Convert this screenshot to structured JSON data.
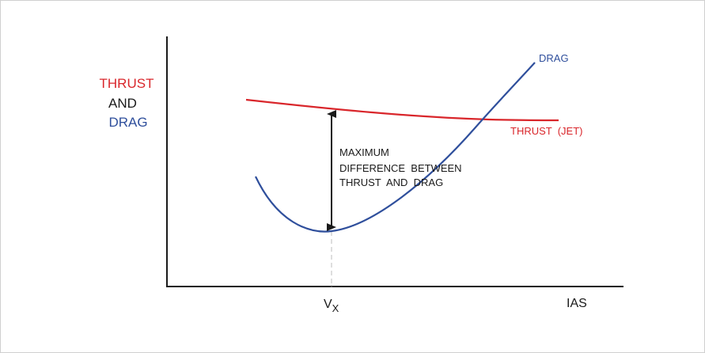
{
  "y_axis_label": {
    "line1": "THRUST",
    "line2": "AND",
    "line3": "DRAG"
  },
  "x_axis_label": "IAS",
  "vx_label": {
    "main": "V",
    "sub": "X"
  },
  "curves": {
    "drag_label": "DRAG",
    "thrust_label": "THRUST  (JET)"
  },
  "annotation": {
    "line1": "MAXIMUM",
    "line2": "DIFFERENCE  BETWEEN",
    "line3": "THRUST  AND  DRAG"
  },
  "colors": {
    "thrust": "#d9262b",
    "drag": "#2f4f9c",
    "axis": "#1a1a1a",
    "text": "#1a1a1a",
    "frame": "#cfcfcf"
  }
}
